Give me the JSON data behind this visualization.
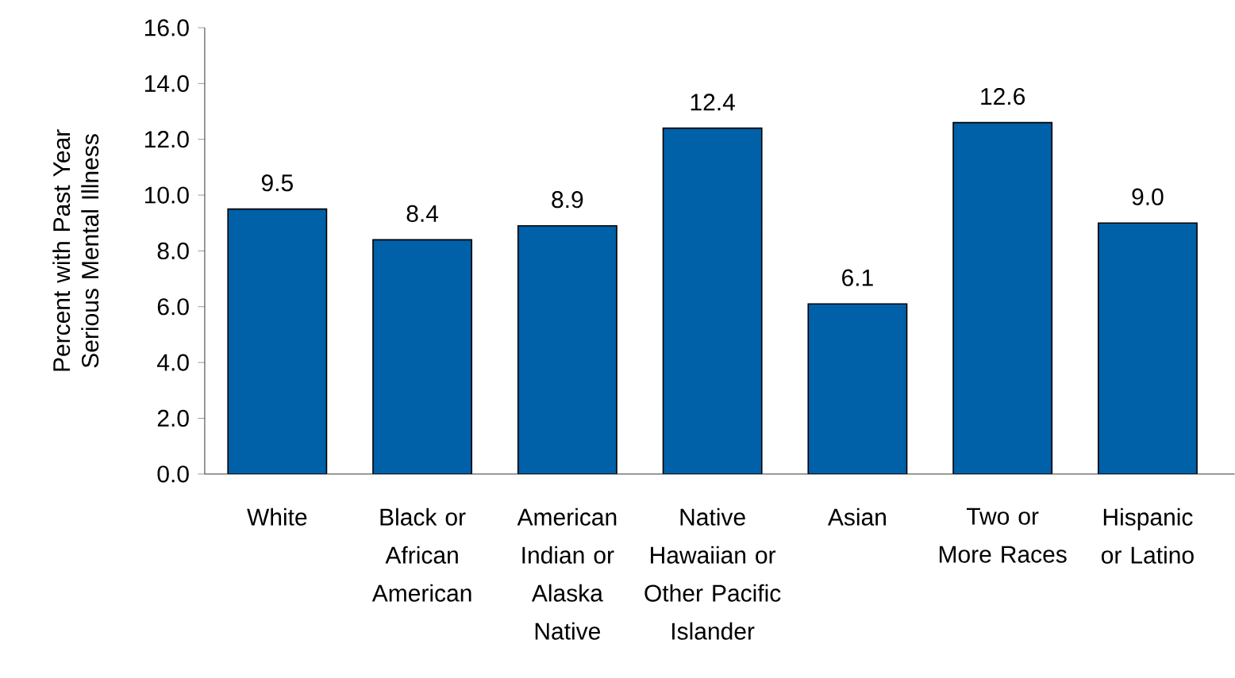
{
  "chart_data": {
    "type": "bar",
    "ylabel": "Percent with Past Year Serious Mental Illness",
    "categories": [
      "White",
      "Black or African American",
      "American Indian or Alaska Native",
      "Native Hawaiian or Other Pacific Islander",
      "Asian",
      "Two or More Races",
      "Hispanic or Latino"
    ],
    "values": [
      9.5,
      8.4,
      8.9,
      12.4,
      6.1,
      12.6,
      9.0
    ],
    "value_labels": [
      "9.5",
      "8.4",
      "8.9",
      "12.4",
      "6.1",
      "12.6",
      "9.0"
    ],
    "color": "#0060a8",
    "ylim": [
      0,
      16
    ],
    "yticks": [
      {
        "value": 0,
        "label": "0.0"
      },
      {
        "value": 2,
        "label": "2.0"
      },
      {
        "value": 4,
        "label": "4.0"
      },
      {
        "value": 6,
        "label": "6.0"
      },
      {
        "value": 8,
        "label": "8.0"
      },
      {
        "value": 10,
        "label": "10.0"
      },
      {
        "value": 12,
        "label": "12.0"
      },
      {
        "value": 14,
        "label": "14.0"
      },
      {
        "value": 16,
        "label": "16.0"
      }
    ],
    "grid": false
  }
}
